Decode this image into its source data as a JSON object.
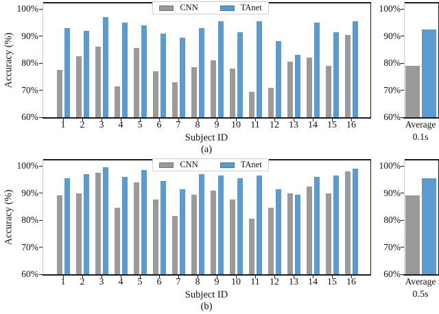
{
  "colors": {
    "cnn": "#9a9a9a",
    "tanet": "#5b9bd0",
    "spine_dark": "#1a1a1a",
    "spine_light": "#c9c9c9"
  },
  "legend": {
    "items": [
      {
        "label": "CNN",
        "color": "#9a9a9a"
      },
      {
        "label": "TAnet",
        "color": "#5b9bd0"
      }
    ]
  },
  "chart_data": [
    {
      "type": "bar",
      "panel": "a",
      "caption": "(a)",
      "xlabel": "Subject ID",
      "ylabel": "Accuracy (%)",
      "ylim": [
        60,
        102.5
      ],
      "grid": false,
      "legend_position": "top-center",
      "ytick_values": [
        100,
        90,
        80,
        70,
        60
      ],
      "ytick_labels": [
        "100%",
        "90%",
        "80%",
        "70%",
        "60%"
      ],
      "categories": [
        "1",
        "2",
        "3",
        "4",
        "5",
        "6",
        "7",
        "8",
        "9",
        "10",
        "11",
        "12",
        "13",
        "14",
        "15",
        "16"
      ],
      "series": [
        {
          "name": "CNN",
          "values": [
            77.5,
            82.5,
            86,
            71.5,
            85.5,
            77,
            73,
            78.5,
            81,
            78,
            69.5,
            71,
            80.5,
            82,
            79,
            90.5
          ]
        },
        {
          "name": "TAnet",
          "values": [
            93,
            92,
            97,
            95,
            94,
            91,
            89.5,
            93,
            95.5,
            91.5,
            95.5,
            88,
            83,
            95,
            91.5,
            95.5
          ]
        }
      ],
      "average": {
        "label": "Average",
        "sublabel": "0.1s",
        "CNN": 79,
        "TAnet": 92.5
      }
    },
    {
      "type": "bar",
      "panel": "b",
      "caption": "(b)",
      "xlabel": "Subject ID",
      "ylabel": "Accuracy (%)",
      "ylim": [
        60,
        102.5
      ],
      "grid": false,
      "legend_position": "top-center",
      "ytick_values": [
        100,
        90,
        80,
        70,
        60
      ],
      "ytick_labels": [
        "100%",
        "90%",
        "80%",
        "70%",
        "60%"
      ],
      "categories": [
        "1",
        "2",
        "3",
        "4",
        "5",
        "6",
        "7",
        "8",
        "9",
        "10",
        "11",
        "12",
        "13",
        "14",
        "15",
        "16"
      ],
      "series": [
        {
          "name": "CNN",
          "values": [
            89,
            90,
            97.5,
            84.5,
            94,
            87.5,
            81.5,
            89.5,
            91,
            87.5,
            80.5,
            84.5,
            90,
            92.5,
            90,
            98
          ]
        },
        {
          "name": "TAnet",
          "values": [
            95.5,
            97,
            99.5,
            96,
            98.5,
            94.5,
            91.5,
            97,
            96.5,
            95.5,
            96.5,
            91.5,
            89.5,
            96,
            96.5,
            99
          ]
        }
      ],
      "average": {
        "label": "Average",
        "sublabel": "0.5s",
        "CNN": 89,
        "TAnet": 95.5
      }
    }
  ]
}
